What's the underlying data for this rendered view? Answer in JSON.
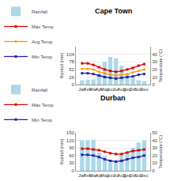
{
  "chart_data": [
    {
      "type": "bar",
      "title": "Cape Town",
      "categories": [
        "Jan",
        "Feb",
        "Mar",
        "Apr",
        "May",
        "Jun",
        "Jul",
        "Aug",
        "Sep",
        "Oct",
        "Nov",
        "Dec"
      ],
      "ylabel": "Rainfall (mm)",
      "y2label": "Temperature (°C)",
      "ylim": [
        0,
        130
      ],
      "yticks": [
        0,
        26,
        52,
        78,
        104
      ],
      "y2lim": [
        0,
        50
      ],
      "y2ticks": [
        0,
        10,
        20,
        30,
        40
      ],
      "grid": true,
      "legend": "upper left",
      "series": [
        {
          "name": "Rainfall",
          "type": "bar",
          "color": "#add8e6",
          "values": [
            15,
            17,
            18,
            38,
            78,
            95,
            90,
            65,
            38,
            25,
            15,
            12
          ]
        },
        {
          "name": "Max Temp",
          "type": "line",
          "color": "#dd0000",
          "marker": "square",
          "axis": "y2",
          "values": [
            28,
            28,
            26,
            23,
            20,
            18,
            17,
            18,
            20,
            22,
            25,
            27
          ]
        },
        {
          "name": "Avg Temp",
          "type": "line",
          "color": "#ff9900",
          "marker": "circle",
          "axis": "y2",
          "values": [
            21,
            21,
            20,
            17,
            15,
            13,
            12,
            13,
            14,
            16,
            18,
            20
          ]
        },
        {
          "name": "Min Temp",
          "type": "line",
          "color": "#2222aa",
          "marker": "square",
          "axis": "y2",
          "values": [
            15,
            15,
            14,
            12,
            10,
            9,
            8,
            9,
            10,
            11,
            13,
            14
          ]
        }
      ]
    },
    {
      "type": "bar",
      "title": "Durban",
      "categories": [
        "Jan",
        "Feb",
        "Mar",
        "Apr",
        "May",
        "Jun",
        "Jul",
        "Aug",
        "Sep",
        "Oct",
        "Nov",
        "Dec"
      ],
      "ylabel": "Rainfall (mm)",
      "y2label": "Temperature (°C)",
      "ylim": [
        0,
        150
      ],
      "yticks": [
        0,
        30,
        60,
        90,
        120,
        150
      ],
      "y2lim": [
        0,
        50
      ],
      "y2ticks": [
        0,
        10,
        20,
        30,
        40,
        50
      ],
      "grid": true,
      "legend": "upper left",
      "series": [
        {
          "name": "Rainfall",
          "type": "bar",
          "color": "#add8e6",
          "values": [
            120,
            120,
            122,
            72,
            58,
            33,
            38,
            65,
            75,
            90,
            112,
            120
          ]
        },
        {
          "name": "Max Temp",
          "type": "line",
          "color": "#dd0000",
          "marker": "square",
          "axis": "y2",
          "values": [
            29,
            29,
            28,
            27,
            25,
            23,
            22,
            22,
            24,
            26,
            27,
            28
          ]
        },
        {
          "name": "Min Temp",
          "type": "line",
          "color": "#2222aa",
          "marker": "square",
          "axis": "y2",
          "values": [
            21,
            21,
            20,
            18,
            15,
            13,
            12,
            13,
            15,
            17,
            18,
            20
          ]
        }
      ]
    }
  ]
}
